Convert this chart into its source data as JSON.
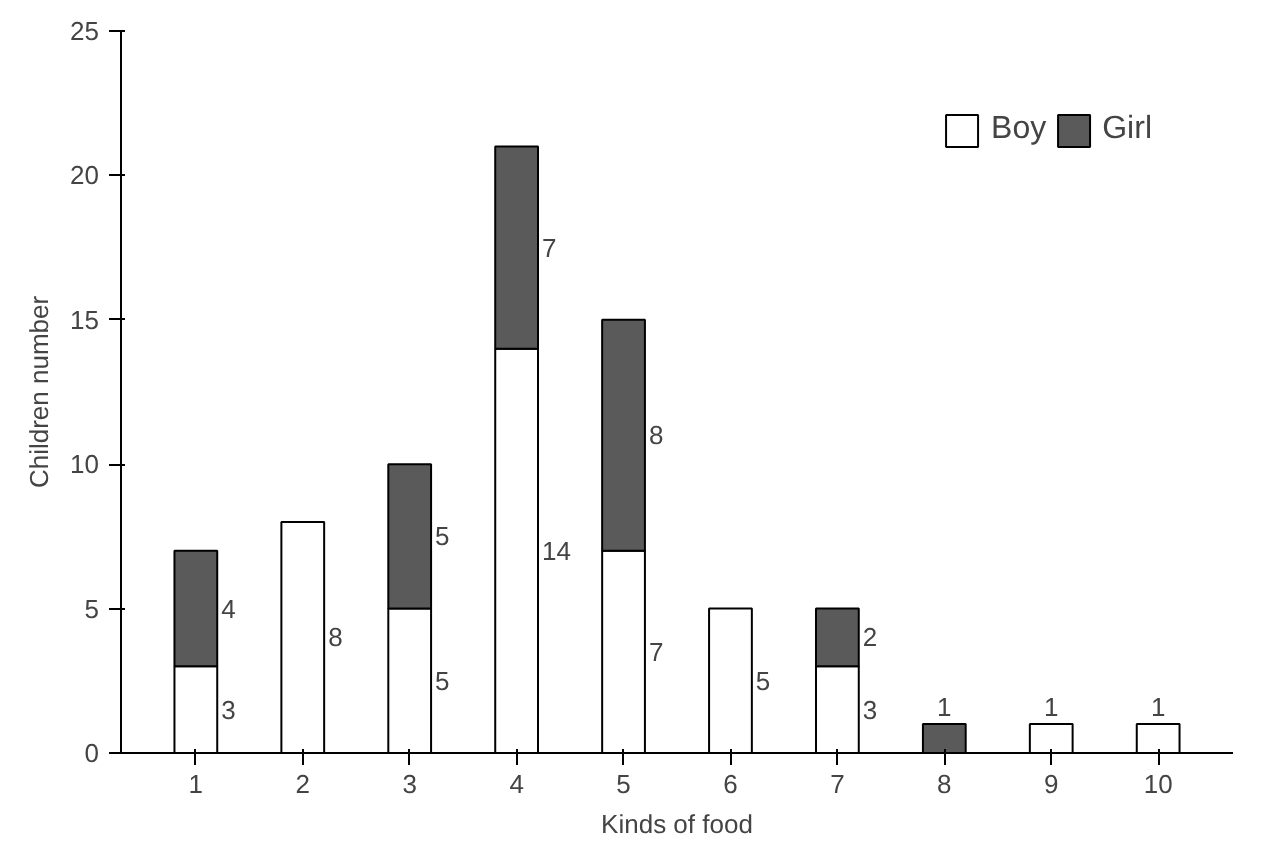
{
  "chart_data": {
    "type": "bar",
    "stacked": true,
    "xlabel": "Kinds of food",
    "ylabel": "Children number",
    "categories": [
      "1",
      "2",
      "3",
      "4",
      "5",
      "6",
      "7",
      "8",
      "9",
      "10"
    ],
    "series": [
      {
        "name": "Boy",
        "color": "#ffffff",
        "values": [
          3,
          8,
          5,
          14,
          7,
          5,
          3,
          0,
          1,
          1
        ],
        "value_labels": [
          "3",
          "8",
          "5",
          "14",
          "7",
          "5",
          "3",
          null,
          "1",
          "1"
        ]
      },
      {
        "name": "Girl",
        "color": "#5a5a5a",
        "values": [
          4,
          0,
          5,
          7,
          8,
          0,
          2,
          1,
          0,
          0
        ],
        "value_labels": [
          "4",
          null,
          "5",
          "7",
          "8",
          null,
          "2",
          "1",
          null,
          null
        ]
      }
    ],
    "ylim": [
      0,
      25
    ],
    "yticks": [
      0,
      5,
      10,
      15,
      20,
      25
    ],
    "legend": "top right",
    "grid": false
  }
}
